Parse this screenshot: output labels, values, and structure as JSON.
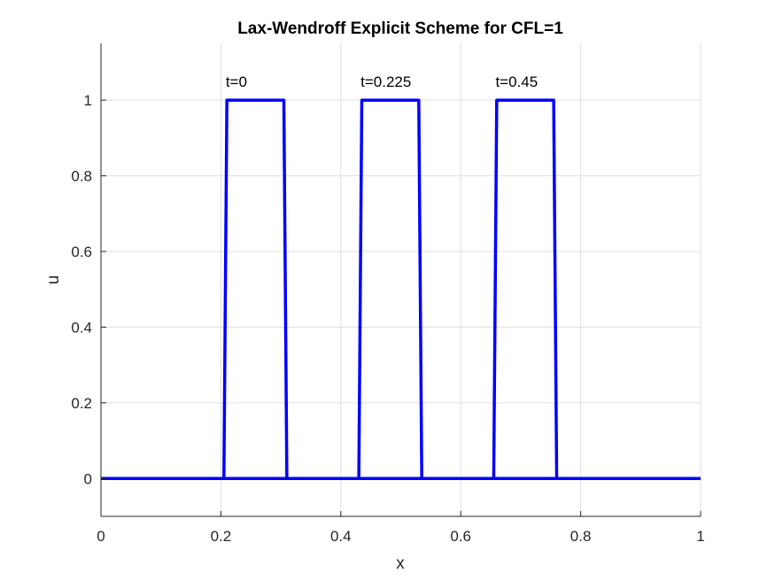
{
  "chart_data": {
    "type": "line",
    "title": "Lax-Wendroff Explicit Scheme for CFL=1",
    "xlabel": "x",
    "ylabel": "u",
    "xlim": [
      0,
      1
    ],
    "ylim": [
      -0.1,
      1.15
    ],
    "xticks": [
      0,
      0.2,
      0.4,
      0.6,
      0.8,
      1
    ],
    "xtick_labels": [
      "0",
      "0.2",
      "0.4",
      "0.6",
      "0.8",
      "1"
    ],
    "yticks": [
      0,
      0.2,
      0.4,
      0.6,
      0.8,
      1
    ],
    "ytick_labels": [
      "0",
      "0.2",
      "0.4",
      "0.6",
      "0.8",
      "1"
    ],
    "grid": true,
    "line_color": "#0000FF",
    "series": [
      {
        "x": [
          0,
          0.205,
          0.21,
          0.305,
          0.31,
          1
        ],
        "y": [
          0,
          0,
          1,
          1,
          0,
          0
        ]
      },
      {
        "x": [
          0,
          0.43,
          0.435,
          0.53,
          0.535,
          1
        ],
        "y": [
          0,
          0,
          1,
          1,
          0,
          0
        ]
      },
      {
        "x": [
          0,
          0.655,
          0.66,
          0.755,
          0.76,
          1
        ],
        "y": [
          0,
          0,
          1,
          1,
          0,
          0
        ]
      }
    ],
    "annotations": [
      {
        "text": "t=0",
        "x": 0.208,
        "y": 1.035
      },
      {
        "text": "t=0.225",
        "x": 0.433,
        "y": 1.035
      },
      {
        "text": "t=0.45",
        "x": 0.658,
        "y": 1.035
      }
    ]
  }
}
